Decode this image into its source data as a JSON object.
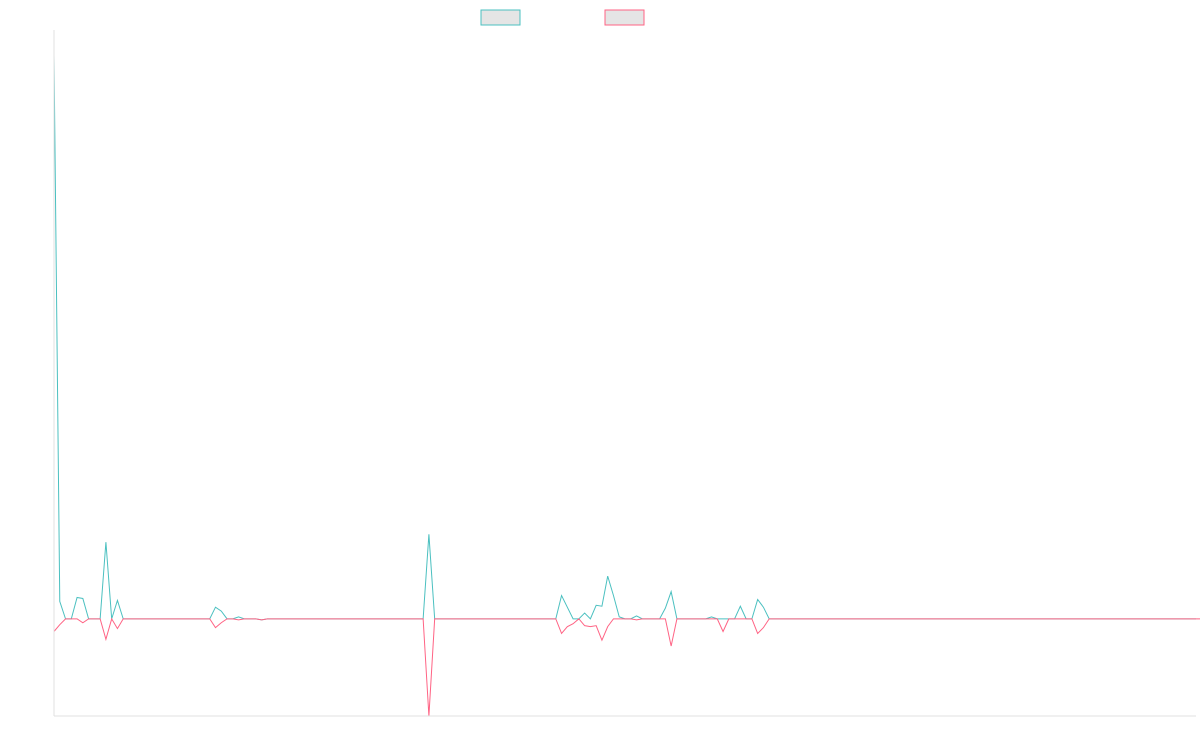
{
  "chart_data": {
    "type": "line",
    "title": "",
    "xlabel": "",
    "ylabel": "",
    "legend_position": "top-center",
    "grid": false,
    "ylim": [
      -10,
      60
    ],
    "series": [
      {
        "color": "#4bc0c0",
        "fill": "#e5e5e5",
        "values": [
          58,
          1.8,
          0,
          0,
          2.2,
          2.1,
          0,
          0,
          0,
          7.9,
          0,
          1.9,
          0,
          0,
          0,
          0,
          0,
          0,
          0,
          0,
          0,
          0,
          0,
          0,
          0,
          0,
          0,
          0,
          1.2,
          0.8,
          0,
          0,
          0.2,
          0,
          0,
          0,
          -0.1,
          0,
          0,
          0,
          0,
          0,
          0,
          0,
          0,
          0,
          0,
          0,
          0,
          0,
          0,
          0,
          0,
          0,
          0,
          0,
          0,
          0,
          0,
          0,
          0,
          0,
          0,
          0,
          0,
          8.7,
          0,
          0,
          0,
          0,
          0,
          0,
          0,
          0,
          0,
          0,
          0,
          0,
          0,
          0,
          0,
          0,
          0,
          0,
          0,
          0,
          0,
          0,
          2.4,
          1.2,
          0,
          0,
          0.6,
          0,
          1.4,
          1.3,
          4.4,
          2.4,
          0.2,
          0,
          0,
          0.3,
          0,
          0,
          0,
          0,
          1.1,
          2.8,
          0,
          0,
          0,
          0,
          0,
          0,
          0.2,
          0,
          0,
          0,
          0,
          1.3,
          0,
          0,
          2,
          1.2,
          0,
          0,
          0,
          0,
          0,
          0,
          0,
          0,
          0,
          0,
          0,
          0,
          0,
          0,
          0,
          0,
          0,
          0,
          0,
          0,
          0,
          0,
          0,
          0,
          0,
          0,
          0,
          0,
          0,
          0,
          0,
          0,
          0,
          0,
          0,
          0,
          0,
          0,
          0,
          0,
          0,
          0,
          0,
          0,
          0,
          0,
          0,
          0,
          0,
          0,
          0,
          0,
          0,
          0,
          0,
          0,
          0,
          0,
          0,
          0,
          0,
          0,
          0,
          0,
          0,
          0,
          0,
          0,
          0,
          0,
          0,
          0,
          0,
          0,
          0
        ]
      },
      {
        "color": "#ff6384",
        "fill": "#e5e5e5",
        "values": [
          -1.3,
          -0.6,
          0,
          0,
          0,
          -0.4,
          0,
          0,
          0,
          -2.1,
          0,
          -1,
          0,
          0,
          0,
          0,
          0,
          0,
          0,
          0,
          0,
          0,
          0,
          0,
          0,
          0,
          0,
          0,
          -0.9,
          -0.4,
          0,
          0,
          -0.1,
          0,
          0,
          0,
          -0.1,
          0,
          0,
          0,
          0,
          0,
          0,
          0,
          0,
          0,
          0,
          0,
          0,
          0,
          0,
          0,
          0,
          0,
          0,
          0,
          0,
          0,
          0,
          0,
          0,
          0,
          0,
          0,
          0,
          -10,
          0,
          0,
          0,
          0,
          0,
          0,
          0,
          0,
          0,
          0,
          0,
          0,
          0,
          0,
          0,
          0,
          0,
          0,
          0,
          0,
          0,
          0,
          -1.5,
          -0.8,
          -0.5,
          0,
          -0.7,
          -0.8,
          -0.7,
          -2.2,
          -0.8,
          0,
          0,
          0,
          0,
          -0.1,
          0,
          0,
          0,
          0,
          0,
          -2.8,
          0,
          0,
          0,
          0,
          0,
          0,
          0,
          0,
          -1.3,
          0,
          0,
          0,
          0,
          0,
          -1.5,
          -0.9,
          0,
          0,
          0,
          0,
          0,
          0,
          0,
          0,
          0,
          0,
          0,
          0,
          0,
          0,
          0,
          0,
          0,
          0,
          0,
          0,
          0,
          0,
          0,
          0,
          0,
          0,
          0,
          0,
          0,
          0,
          0,
          0,
          0,
          0,
          0,
          0,
          0,
          0,
          0,
          0,
          0,
          0,
          0,
          0,
          0,
          0,
          0,
          0,
          0,
          0,
          0,
          0,
          0,
          0,
          0,
          0,
          0,
          0,
          0,
          0,
          0,
          0,
          0,
          0,
          0,
          0,
          0,
          0,
          0,
          0,
          0,
          0,
          0,
          0,
          0,
          0
        ]
      }
    ]
  }
}
